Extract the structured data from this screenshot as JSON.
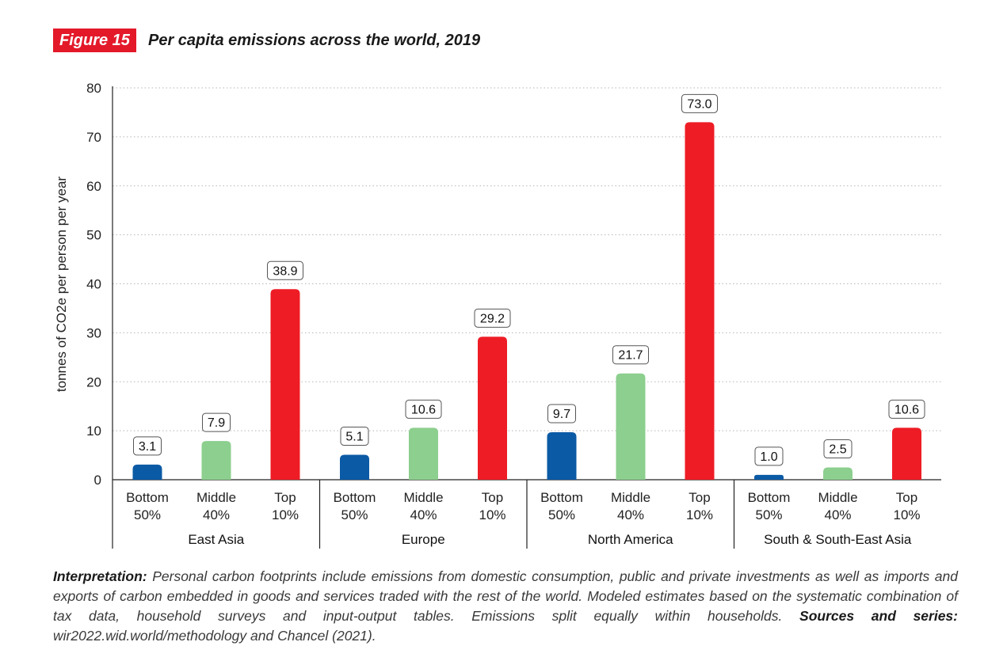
{
  "figure": {
    "tag": "Figure 15",
    "title": "Per capita emissions across the world, 2019"
  },
  "chart_data": {
    "type": "bar",
    "title": "Per capita emissions across the world, 2019",
    "ylabel": "tonnes of CO2e per person per year",
    "ylim": [
      0,
      80
    ],
    "yticks": [
      0,
      10,
      20,
      30,
      40,
      50,
      60,
      70,
      80
    ],
    "grid": true,
    "groups": [
      {
        "name": "East Asia",
        "bars": [
          {
            "label_line1": "Bottom",
            "label_line2": "50%",
            "value": 3.1,
            "value_label": "3.1",
            "color": "#0b5aa5"
          },
          {
            "label_line1": "Middle",
            "label_line2": "40%",
            "value": 7.9,
            "value_label": "7.9",
            "color": "#8ccf8e"
          },
          {
            "label_line1": "Top",
            "label_line2": "10%",
            "value": 38.9,
            "value_label": "38.9",
            "color": "#ee1c25"
          }
        ]
      },
      {
        "name": "Europe",
        "bars": [
          {
            "label_line1": "Bottom",
            "label_line2": "50%",
            "value": 5.1,
            "value_label": "5.1",
            "color": "#0b5aa5"
          },
          {
            "label_line1": "Middle",
            "label_line2": "40%",
            "value": 10.6,
            "value_label": "10.6",
            "color": "#8ccf8e"
          },
          {
            "label_line1": "Top",
            "label_line2": "10%",
            "value": 29.2,
            "value_label": "29.2",
            "color": "#ee1c25"
          }
        ]
      },
      {
        "name": "North America",
        "bars": [
          {
            "label_line1": "Bottom",
            "label_line2": "50%",
            "value": 9.7,
            "value_label": "9.7",
            "color": "#0b5aa5"
          },
          {
            "label_line1": "Middle",
            "label_line2": "40%",
            "value": 21.7,
            "value_label": "21.7",
            "color": "#8ccf8e"
          },
          {
            "label_line1": "Top",
            "label_line2": "10%",
            "value": 73.0,
            "value_label": "73.0",
            "color": "#ee1c25"
          }
        ]
      },
      {
        "name": "South & South-East Asia",
        "bars": [
          {
            "label_line1": "Bottom",
            "label_line2": "50%",
            "value": 1.0,
            "value_label": "1.0",
            "color": "#0b5aa5"
          },
          {
            "label_line1": "Middle",
            "label_line2": "40%",
            "value": 2.5,
            "value_label": "2.5",
            "color": "#8ccf8e"
          },
          {
            "label_line1": "Top",
            "label_line2": "10%",
            "value": 10.6,
            "value_label": "10.6",
            "color": "#ee1c25"
          }
        ]
      }
    ]
  },
  "note": {
    "interpretation_label": "Interpretation:",
    "interpretation_text": " Personal carbon footprints include emissions from domestic consumption, public and private investments as well as imports and exports of carbon embedded in goods and services traded with the rest of the world. Modeled estimates based on the systematic combination of tax data, household surveys and input-output tables. Emissions split equally within households. ",
    "sources_label": "Sources and series:",
    "sources_text": " wir2022.wid.world/methodology and Chancel (2021)."
  }
}
